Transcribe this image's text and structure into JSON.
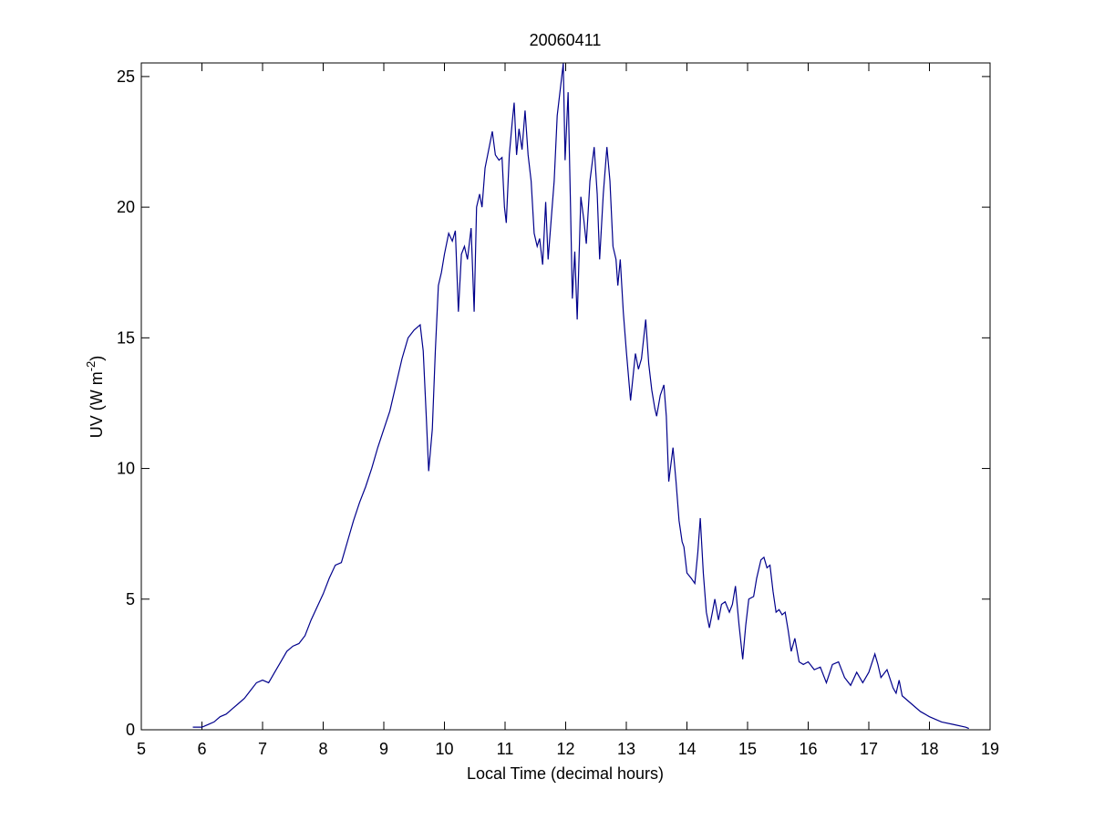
{
  "chart_data": {
    "type": "line",
    "title": "20060411",
    "xlabel": "Local Time (decimal hours)",
    "ylabel": {
      "text": "UV (W m",
      "superscript": "-2",
      "suffix": ")"
    },
    "xlim": [
      5,
      19
    ],
    "xticks": [
      5,
      6,
      7,
      8,
      9,
      10,
      11,
      12,
      13,
      14,
      15,
      16,
      17,
      18,
      19
    ],
    "ylim": [
      0,
      25.52
    ],
    "yticks": [
      0,
      5,
      10,
      15,
      20,
      25
    ],
    "grid": false,
    "box": true,
    "series": [
      {
        "color": "#00008b",
        "x": [
          5.85,
          6.0,
          6.1,
          6.2,
          6.3,
          6.4,
          6.5,
          6.6,
          6.7,
          6.8,
          6.9,
          7.0,
          7.1,
          7.2,
          7.3,
          7.4,
          7.5,
          7.6,
          7.7,
          7.8,
          7.9,
          8.0,
          8.1,
          8.2,
          8.3,
          8.4,
          8.5,
          8.6,
          8.7,
          8.8,
          8.9,
          9.0,
          9.1,
          9.2,
          9.3,
          9.4,
          9.5,
          9.6,
          9.65,
          9.7,
          9.74,
          9.8,
          9.85,
          9.9,
          9.95,
          10.0,
          10.07,
          10.13,
          10.18,
          10.23,
          10.28,
          10.33,
          10.38,
          10.44,
          10.49,
          10.53,
          10.58,
          10.62,
          10.67,
          10.73,
          10.79,
          10.84,
          10.9,
          10.95,
          10.99,
          11.02,
          11.07,
          11.12,
          11.15,
          11.19,
          11.23,
          11.28,
          11.33,
          11.38,
          11.43,
          11.48,
          11.53,
          11.57,
          11.62,
          11.67,
          11.71,
          11.76,
          11.81,
          11.86,
          11.91,
          11.96,
          11.99,
          12.04,
          12.08,
          12.11,
          12.15,
          12.19,
          12.25,
          12.3,
          12.34,
          12.4,
          12.47,
          12.52,
          12.56,
          12.62,
          12.68,
          12.73,
          12.78,
          12.83,
          12.86,
          12.9,
          12.95,
          13.0,
          13.07,
          13.11,
          13.15,
          13.2,
          13.25,
          13.32,
          13.37,
          13.42,
          13.47,
          13.5,
          13.56,
          13.62,
          13.66,
          13.7,
          13.77,
          13.82,
          13.87,
          13.92,
          13.95,
          14.0,
          14.07,
          14.13,
          14.18,
          14.22,
          14.27,
          14.32,
          14.37,
          14.42,
          14.46,
          14.52,
          14.57,
          14.63,
          14.7,
          14.75,
          14.8,
          14.86,
          14.92,
          14.97,
          15.02,
          15.1,
          15.15,
          15.22,
          15.27,
          15.32,
          15.37,
          15.42,
          15.47,
          15.52,
          15.57,
          15.62,
          15.67,
          15.72,
          15.78,
          15.85,
          15.92,
          16.0,
          16.1,
          16.2,
          16.3,
          16.4,
          16.5,
          16.6,
          16.7,
          16.8,
          16.9,
          17.0,
          17.1,
          17.15,
          17.2,
          17.3,
          17.4,
          17.45,
          17.5,
          17.55,
          17.7,
          17.85,
          18.0,
          18.2,
          18.4,
          18.6,
          18.65
        ],
        "values": [
          0.1,
          0.1,
          0.2,
          0.3,
          0.5,
          0.6,
          0.8,
          1.0,
          1.2,
          1.5,
          1.8,
          1.9,
          1.8,
          2.2,
          2.6,
          3.0,
          3.2,
          3.3,
          3.6,
          4.2,
          4.7,
          5.2,
          5.8,
          6.3,
          6.4,
          7.2,
          8.0,
          8.7,
          9.3,
          10.0,
          10.8,
          11.5,
          12.2,
          13.2,
          14.2,
          15.0,
          15.3,
          15.5,
          14.5,
          12.0,
          9.9,
          11.5,
          14.5,
          17.0,
          17.5,
          18.2,
          19.0,
          18.7,
          19.1,
          16.0,
          18.2,
          18.5,
          18.0,
          19.2,
          16.0,
          20.0,
          20.5,
          20.0,
          21.5,
          22.2,
          22.9,
          22.0,
          21.8,
          21.9,
          20.0,
          19.4,
          22.0,
          23.3,
          24.0,
          22.0,
          23.0,
          22.2,
          23.7,
          22.0,
          21.0,
          19.0,
          18.5,
          18.8,
          17.8,
          20.2,
          18.0,
          19.5,
          21.0,
          23.5,
          24.5,
          25.5,
          21.8,
          24.4,
          20.0,
          16.5,
          18.3,
          15.7,
          20.4,
          19.5,
          18.6,
          21.0,
          22.3,
          20.5,
          18.0,
          20.5,
          22.3,
          21.0,
          18.5,
          18.0,
          17.0,
          18.0,
          16.0,
          14.5,
          12.6,
          13.5,
          14.4,
          13.8,
          14.2,
          15.7,
          14.0,
          13.0,
          12.3,
          12.0,
          12.8,
          13.2,
          12.0,
          9.5,
          10.8,
          9.5,
          8.0,
          7.2,
          7.0,
          6.0,
          5.8,
          5.6,
          6.8,
          8.1,
          6.0,
          4.5,
          3.9,
          4.5,
          5.0,
          4.2,
          4.8,
          4.9,
          4.5,
          4.8,
          5.5,
          4.0,
          2.7,
          4.0,
          5.0,
          5.1,
          5.8,
          6.5,
          6.6,
          6.2,
          6.3,
          5.3,
          4.5,
          4.6,
          4.4,
          4.5,
          3.8,
          3.0,
          3.5,
          2.6,
          2.5,
          2.6,
          2.3,
          2.4,
          1.8,
          2.5,
          2.6,
          2.0,
          1.7,
          2.2,
          1.8,
          2.2,
          2.9,
          2.5,
          2.0,
          2.3,
          1.6,
          1.4,
          1.9,
          1.3,
          1.0,
          0.7,
          0.5,
          0.3,
          0.2,
          0.1,
          0.05
        ]
      }
    ]
  }
}
